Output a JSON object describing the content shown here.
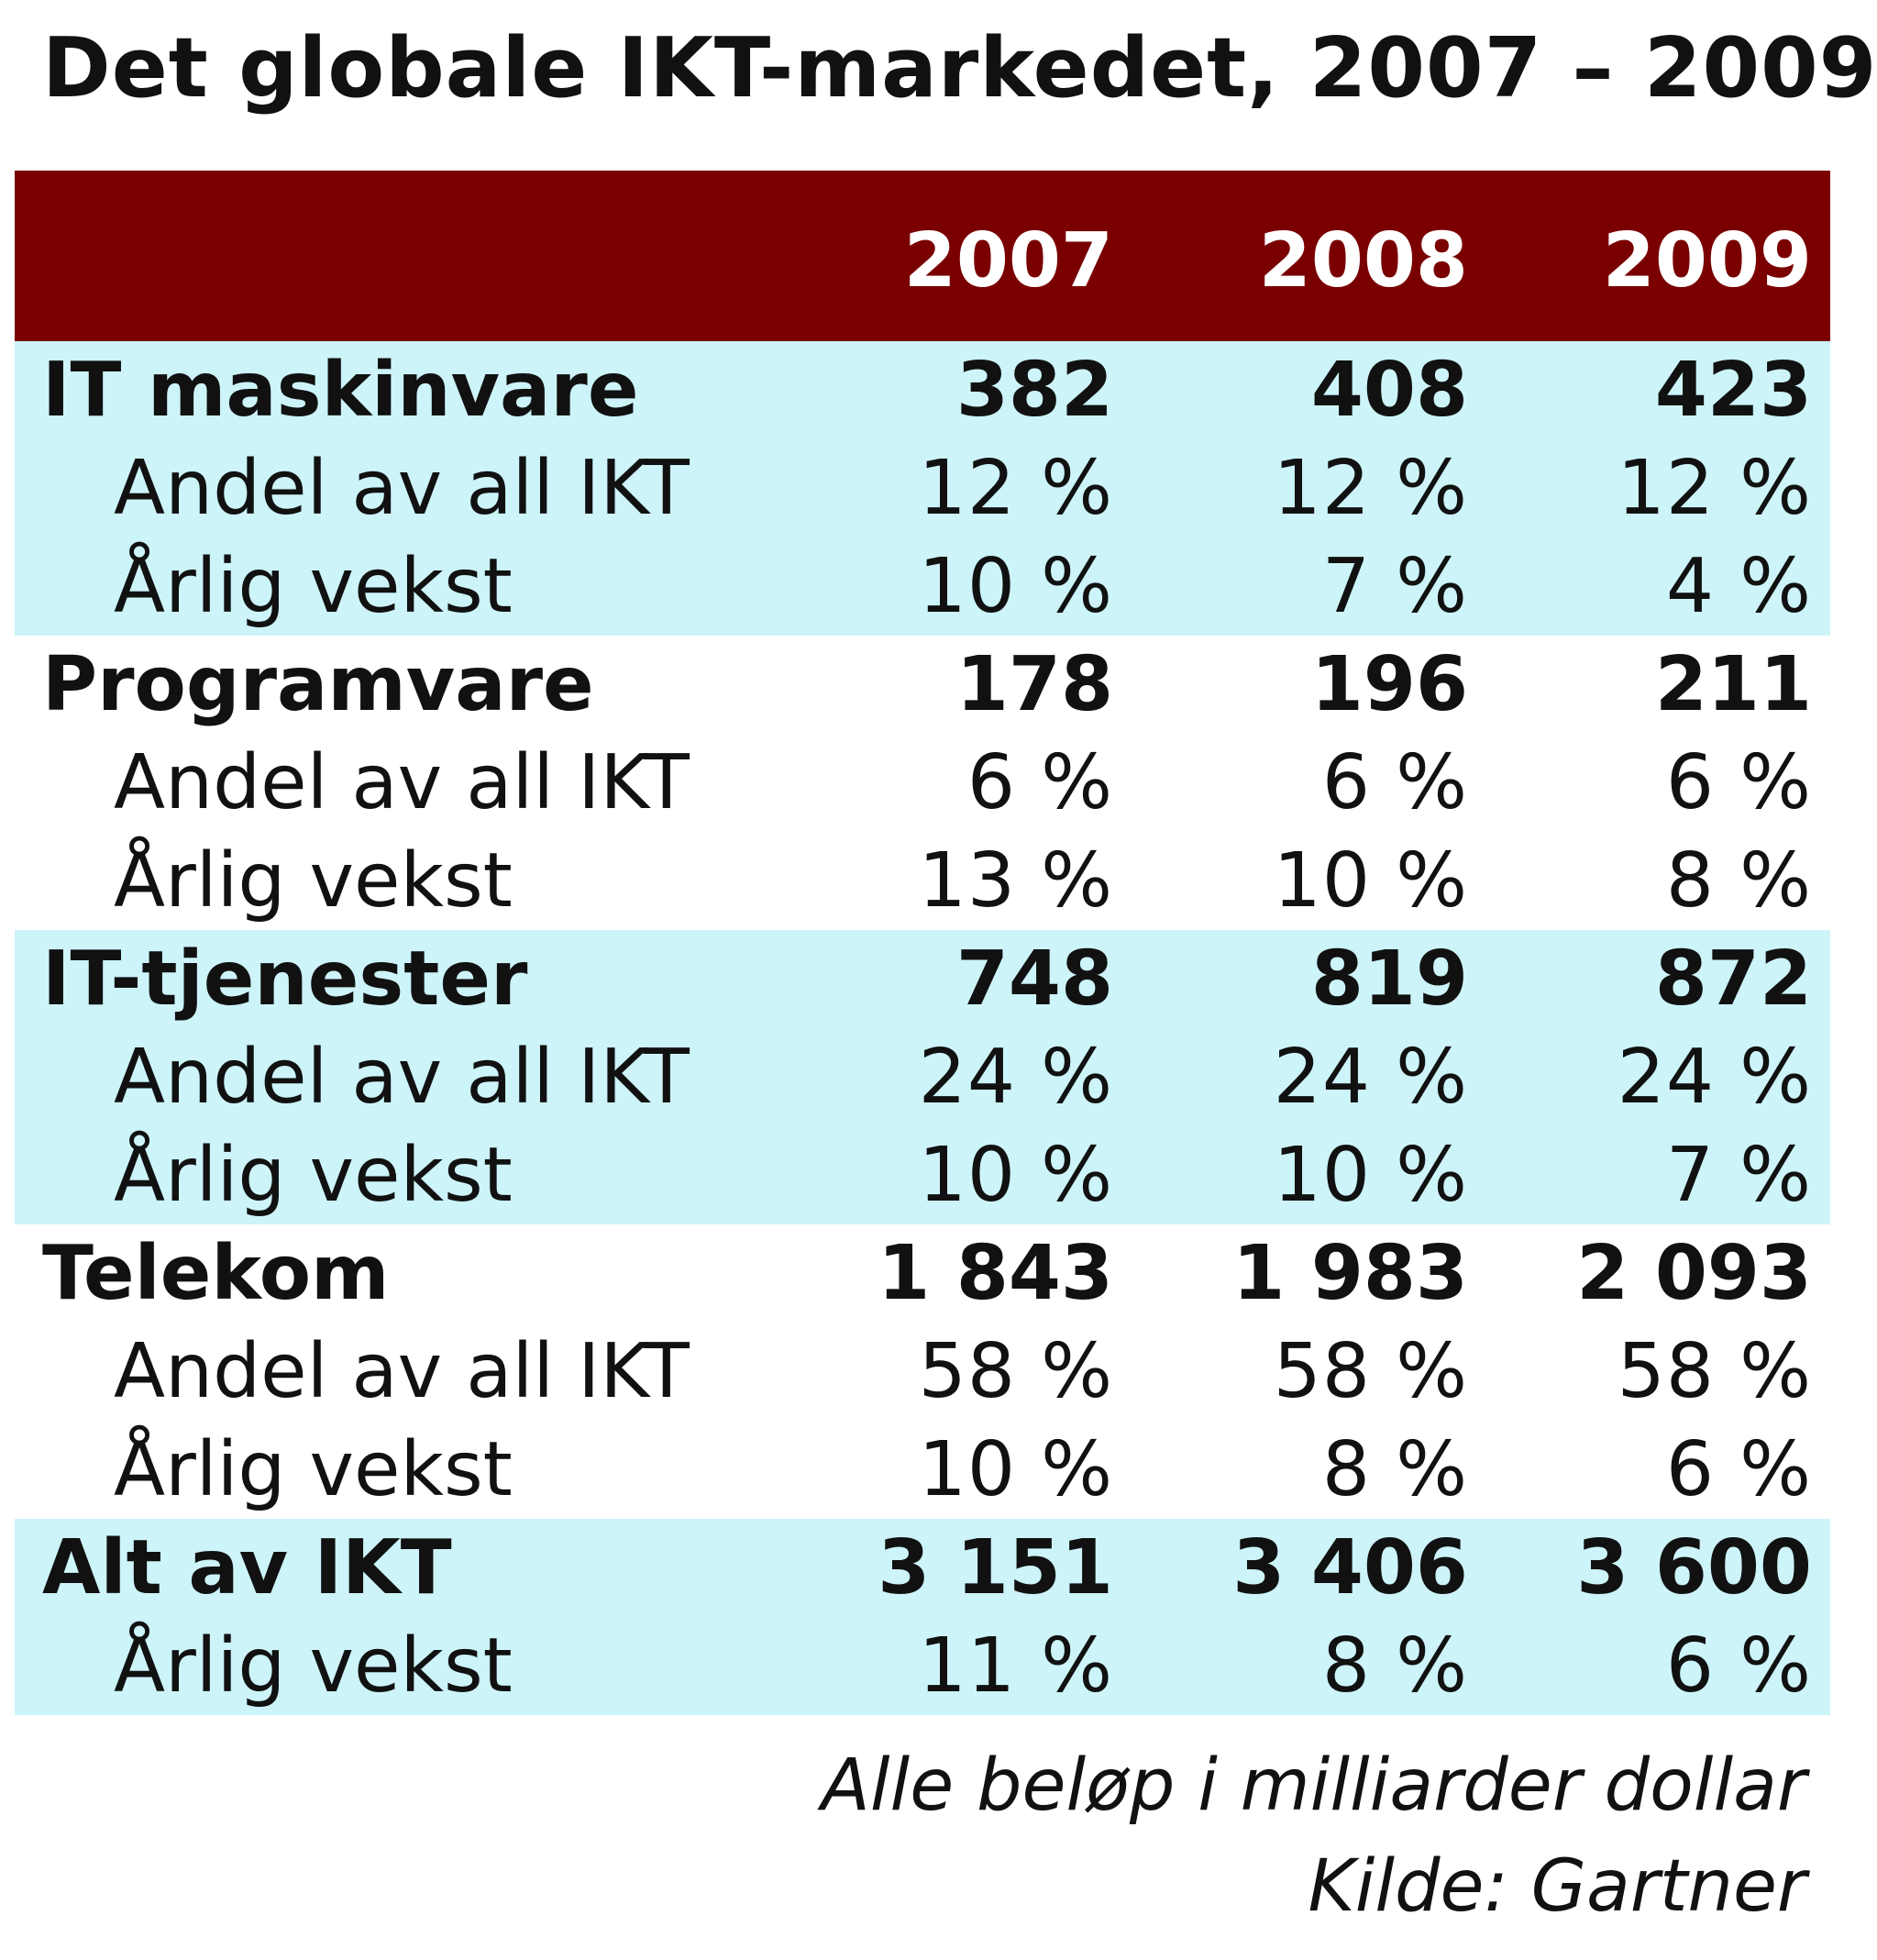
{
  "title": "Det globale IKT-markedet, 2007 – 2009",
  "colors": {
    "header_bg": "#7a0000",
    "band_bg": "#ccf4f9",
    "header_text": "#ffffff"
  },
  "chart_data": {
    "type": "table",
    "title": "Det globale IKT-markedet, 2007 – 2009",
    "columns": [
      "2007",
      "2008",
      "2009"
    ],
    "groups": [
      {
        "name": "IT maskinvare",
        "values": [
          "382",
          "408",
          "423"
        ],
        "rows": [
          {
            "label": "Andel av all IKT",
            "values": [
              "12 %",
              "12 %",
              "12 %"
            ]
          },
          {
            "label": "Årlig vekst",
            "values": [
              "10 %",
              "7 %",
              "4 %"
            ]
          }
        ]
      },
      {
        "name": "Programvare",
        "values": [
          "178",
          "196",
          "211"
        ],
        "rows": [
          {
            "label": "Andel av all IKT",
            "values": [
              "6 %",
              "6 %",
              "6 %"
            ]
          },
          {
            "label": "Årlig vekst",
            "values": [
              "13 %",
              "10 %",
              "8 %"
            ]
          }
        ]
      },
      {
        "name": "IT-tjenester",
        "values": [
          "748",
          "819",
          "872"
        ],
        "rows": [
          {
            "label": "Andel av all IKT",
            "values": [
              "24 %",
              "24 %",
              "24 %"
            ]
          },
          {
            "label": "Årlig vekst",
            "values": [
              "10 %",
              "10 %",
              "7 %"
            ]
          }
        ]
      },
      {
        "name": "Telekom",
        "values": [
          "1 843",
          "1 983",
          "2 093"
        ],
        "rows": [
          {
            "label": "Andel av all IKT",
            "values": [
              "58 %",
              "58 %",
              "58 %"
            ]
          },
          {
            "label": "Årlig vekst",
            "values": [
              "10 %",
              "8 %",
              "6 %"
            ]
          }
        ]
      },
      {
        "name": "Alt av IKT",
        "values": [
          "3 151",
          "3 406",
          "3 600"
        ],
        "rows": [
          {
            "label": "Årlig vekst",
            "values": [
              "11 %",
              "8 %",
              "6 %"
            ]
          }
        ]
      }
    ],
    "notes": [
      "Alle beløp i milliarder dollar",
      "Kilde: Gartner"
    ]
  }
}
